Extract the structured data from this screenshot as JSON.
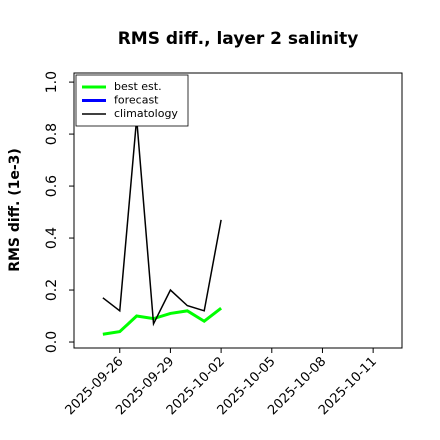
{
  "chart_data": {
    "type": "line",
    "title": "RMS diff., layer 2 salinity",
    "y_label": "RMS diff. (1e-3)",
    "x": [
      "2025-09-25",
      "2025-09-26",
      "2025-09-27",
      "2025-09-28",
      "2025-09-29",
      "2025-09-30",
      "2025-10-01",
      "2025-10-02"
    ],
    "series": [
      {
        "name": "best est.",
        "color": "#00ff00",
        "width": 3,
        "values": [
          0.03,
          0.04,
          0.1,
          0.09,
          0.11,
          0.12,
          0.08,
          0.13
        ]
      },
      {
        "name": "forecast",
        "color": "#0000ff",
        "width": 3,
        "values": [
          null,
          null,
          null,
          null,
          null,
          null,
          null,
          null
        ]
      },
      {
        "name": "climatology",
        "color": "#000000",
        "width": 1.5,
        "values": [
          0.17,
          0.12,
          0.86,
          0.07,
          0.2,
          0.14,
          0.12,
          0.47
        ]
      }
    ],
    "xlim": [
      "2025-09-23T07:00",
      "2025-10-12T17:00"
    ],
    "xticks": [
      "2025-09-26",
      "2025-09-29",
      "2025-10-02",
      "2025-10-05",
      "2025-10-08",
      "2025-10-11"
    ],
    "xtick_highlight": "2025-10-02",
    "xtick_highlight_color": "#228b22",
    "ylim": [
      -0.023,
      1.035
    ],
    "yticks": [
      {
        "value": 0,
        "label": "0.0"
      },
      {
        "value": 0.2,
        "label": "0.2"
      },
      {
        "value": 0.4,
        "label": "0.4"
      },
      {
        "value": 0.6,
        "label": "0.6"
      },
      {
        "value": 0.8,
        "label": "0.8"
      },
      {
        "value": 1,
        "label": "1.0"
      }
    ],
    "legend": "upper left"
  }
}
